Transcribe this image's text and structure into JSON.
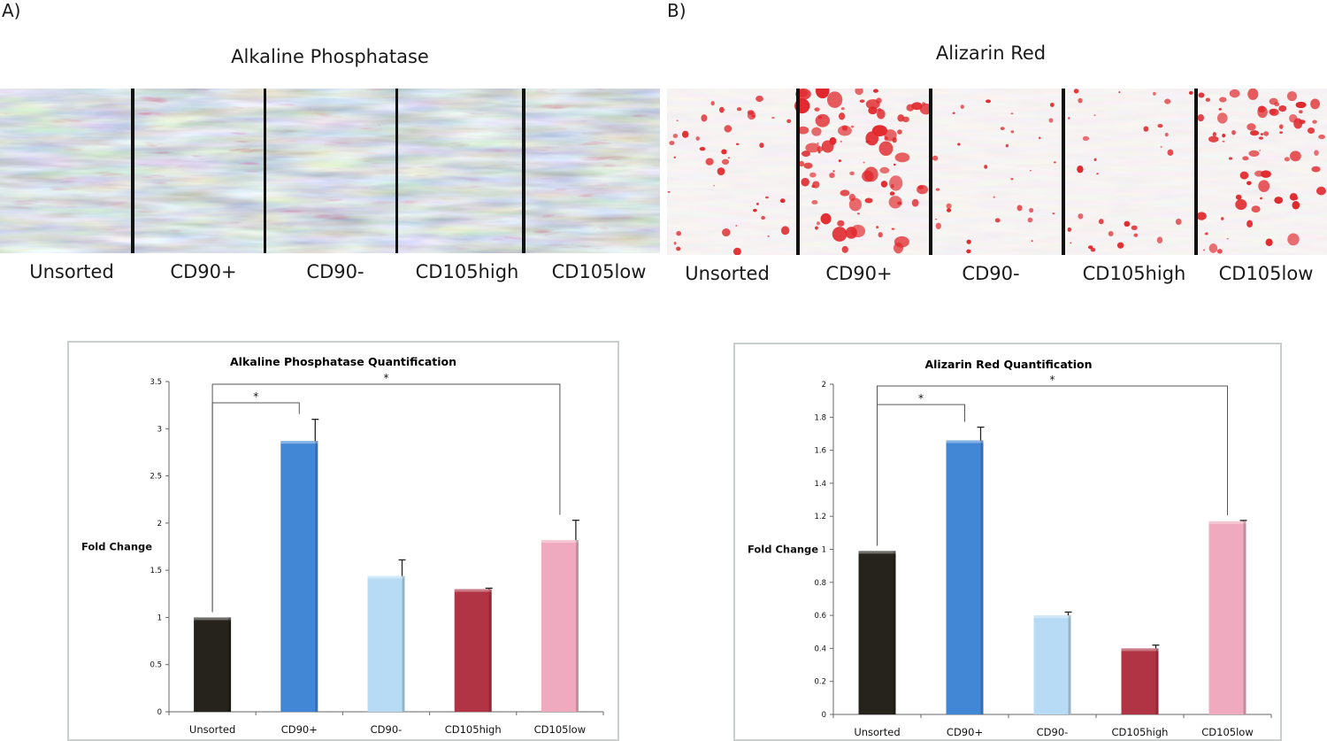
{
  "panel_a": {
    "panel_label": "A)",
    "title": "Alkaline Phosphatase",
    "samples": [
      "Unsorted",
      "CD90+",
      "CD90-",
      "CD105high",
      "CD105low"
    ]
  },
  "panel_b": {
    "panel_label": "B)",
    "title": "Alizarin Red",
    "samples": [
      "Unsorted",
      "CD90+",
      "CD90-",
      "CD105high",
      "CD105low"
    ]
  },
  "colors": {
    "unsorted": "#25231c",
    "cd90_pos": "#4286d6",
    "cd90_neg": "#b7dbf5",
    "cd105_high": "#b03444",
    "cd105_low": "#f0aabf",
    "alp_stain": "#b5284a",
    "alizarin_stain": "#e0282c"
  },
  "chart_data": [
    {
      "type": "bar",
      "title": "Alkaline Phosphatase Quantification",
      "xlabel": "",
      "ylabel": "Fold Change",
      "categories": [
        "Unsorted",
        "CD90+",
        "CD90-",
        "CD105high",
        "CD105low"
      ],
      "values": [
        1.0,
        2.87,
        1.44,
        1.3,
        1.82
      ],
      "errors": [
        0.0,
        0.23,
        0.17,
        0.01,
        0.21
      ],
      "ylim": [
        0,
        3.5
      ],
      "yticks": [
        "0",
        "0.5",
        "1",
        "1.5",
        "2",
        "2.5",
        "3",
        "3.5"
      ],
      "significance": [
        {
          "from": "Unsorted",
          "to": "CD90+",
          "label": "*"
        },
        {
          "from": "Unsorted",
          "to": "CD105low",
          "label": "*"
        }
      ]
    },
    {
      "type": "bar",
      "title": "Alizarin Red Quantification",
      "xlabel": "",
      "ylabel": "Fold Change",
      "categories": [
        "Unsorted",
        "CD90+",
        "CD90-",
        "CD105high",
        "CD105low"
      ],
      "values": [
        0.99,
        1.66,
        0.6,
        0.4,
        1.17
      ],
      "errors": [
        0.0,
        0.08,
        0.02,
        0.02,
        0.005
      ],
      "ylim": [
        0,
        2
      ],
      "yticks": [
        "0",
        "0.2",
        "0.4",
        "0.6",
        "0.8",
        "1",
        "1.2",
        "1.4",
        "1.6",
        "1.8",
        "2"
      ],
      "significance": [
        {
          "from": "Unsorted",
          "to": "CD90+",
          "label": "*"
        },
        {
          "from": "Unsorted",
          "to": "CD105low",
          "label": "*"
        }
      ]
    }
  ]
}
